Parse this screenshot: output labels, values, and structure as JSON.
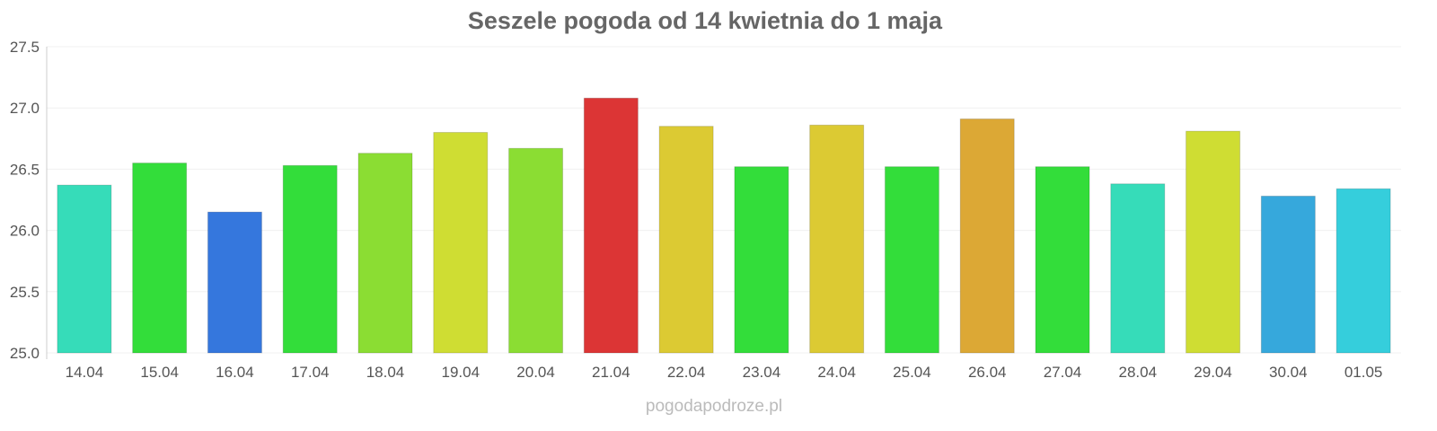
{
  "chart_data": {
    "type": "bar",
    "title": "Seszele pogoda od 14 kwietnia do 1 maja",
    "xlabel": "",
    "ylabel": "",
    "ylim": [
      25.0,
      27.5
    ],
    "yticks": [
      "25.0",
      "25.5",
      "26.0",
      "26.5",
      "27.0",
      "27.5"
    ],
    "grid": true,
    "categories": [
      "14.04",
      "15.04",
      "16.04",
      "17.04",
      "18.04",
      "19.04",
      "20.04",
      "21.04",
      "22.04",
      "23.04",
      "24.04",
      "25.04",
      "26.04",
      "27.04",
      "28.04",
      "29.04",
      "30.04",
      "01.05"
    ],
    "values": [
      26.37,
      26.55,
      26.15,
      26.53,
      26.63,
      26.8,
      26.67,
      27.08,
      26.85,
      26.52,
      26.86,
      26.52,
      26.91,
      26.52,
      26.38,
      26.81,
      26.28,
      26.34
    ],
    "colors": [
      "#36dcb9",
      "#33dd3a",
      "#3577dd",
      "#33dd3a",
      "#8bdd33",
      "#cfdd33",
      "#8bdd33",
      "#dc3535",
      "#dcca33",
      "#33dd3a",
      "#dcca33",
      "#33dd3a",
      "#dca835",
      "#33dd3a",
      "#36dcb9",
      "#cfdd33",
      "#36a8dc",
      "#35cedc"
    ]
  },
  "credit": "pogodapodroze.pl"
}
